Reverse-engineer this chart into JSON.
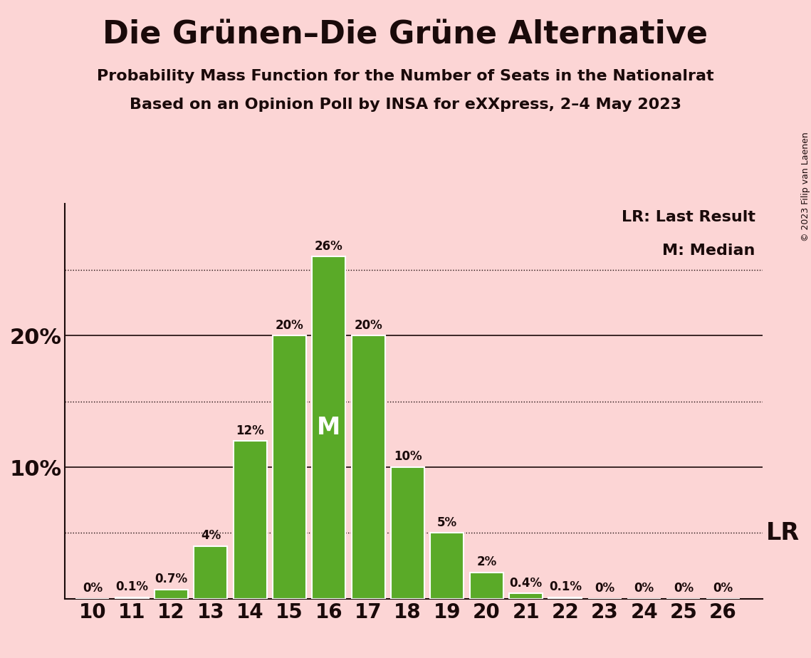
{
  "title": "Die Grünen–Die Grüne Alternative",
  "subtitle1": "Probability Mass Function for the Number of Seats in the Nationalrat",
  "subtitle2": "Based on an Opinion Poll by INSA for eXXpress, 2–4 May 2023",
  "copyright": "© 2023 Filip van Laenen",
  "lr_label": "LR: Last Result",
  "m_label": "M: Median",
  "lr_annotation": "LR",
  "m_annotation": "M",
  "seats": [
    10,
    11,
    12,
    13,
    14,
    15,
    16,
    17,
    18,
    19,
    20,
    21,
    22,
    23,
    24,
    25,
    26
  ],
  "probabilities": [
    0.0,
    0.1,
    0.7,
    4.0,
    12.0,
    20.0,
    26.0,
    20.0,
    10.0,
    5.0,
    2.0,
    0.4,
    0.1,
    0.0,
    0.0,
    0.0,
    0.0
  ],
  "bar_color": "#5aaa28",
  "bar_edge_color": "#ffffff",
  "background_color": "#fcd5d5",
  "text_color": "#1a0a0a",
  "median_seat": 16,
  "lr_line_value": 5.0,
  "dotted_lines": [
    5.0,
    15.0,
    25.0
  ],
  "solid_lines": [
    10.0,
    20.0
  ],
  "ylim": [
    0,
    30
  ],
  "ytick_labels_positions": [
    10,
    20
  ],
  "ytick_labels": [
    "10%",
    "20%"
  ],
  "title_fontsize": 32,
  "subtitle_fontsize": 16,
  "bar_label_fontsize": 12,
  "ytick_fontsize": 22,
  "xtick_fontsize": 20,
  "legend_fontsize": 16,
  "lr_fontsize": 24,
  "m_inside_fontsize": 24,
  "copyright_fontsize": 9
}
